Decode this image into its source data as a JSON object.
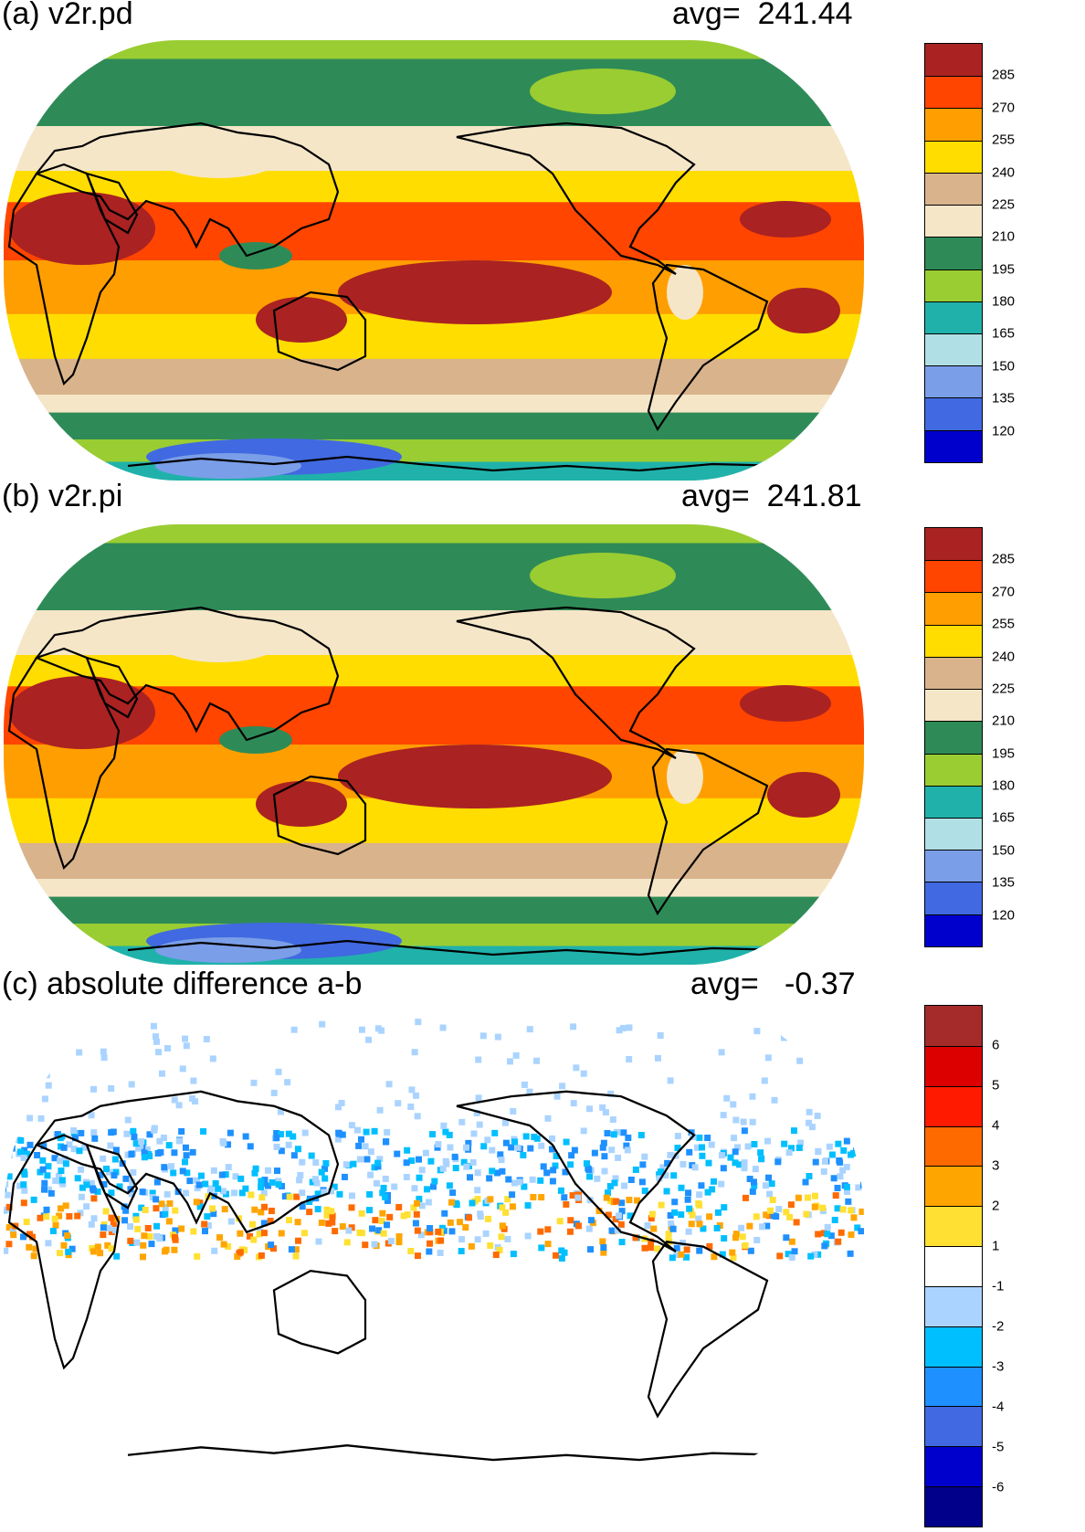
{
  "panels": [
    {
      "title": "(a) v2r.pd",
      "avg_label": "avg=",
      "avg_value": "241.44",
      "scale": "abs",
      "colorbar_labels": [
        "285",
        "270",
        "255",
        "240",
        "225",
        "210",
        "195",
        "180",
        "165",
        "150",
        "135",
        "120"
      ]
    },
    {
      "title": "(b) v2r.pi",
      "avg_label": "avg=",
      "avg_value": "241.81",
      "scale": "abs",
      "colorbar_labels": [
        "285",
        "270",
        "255",
        "240",
        "225",
        "210",
        "195",
        "180",
        "165",
        "150",
        "135",
        "120"
      ]
    },
    {
      "title": "(c) absolute difference a-b",
      "avg_label": "avg=",
      "avg_value": "-0.37",
      "scale": "diff",
      "colorbar_labels": [
        "6",
        "5",
        "4",
        "3",
        "2",
        "1",
        "-1",
        "-2",
        "-3",
        "-4",
        "-5",
        "-6"
      ]
    }
  ],
  "colors": {
    "abs_scale": [
      "#aa2222",
      "#ff4500",
      "#ff9e00",
      "#ffdd00",
      "#d9b38c",
      "#f5e6c8",
      "#2e8b57",
      "#9acd32",
      "#20b2aa",
      "#b0e0e6",
      "#7b9ee8",
      "#4169e1",
      "#0000cd"
    ],
    "diff_scale": [
      "#a52a2a",
      "#dd0000",
      "#ff1a00",
      "#ff6a00",
      "#ffa500",
      "#ffe033",
      "#ffffff",
      "#aad4ff",
      "#00bfff",
      "#1e90ff",
      "#4169e1",
      "#0000cd",
      "#00008b"
    ],
    "coastline": "#000000"
  }
}
